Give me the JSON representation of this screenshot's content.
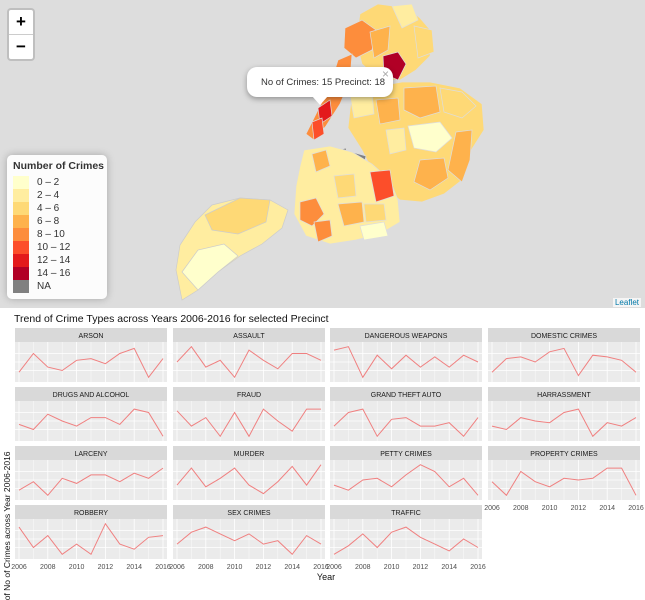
{
  "map": {
    "zoom_in_label": "+",
    "zoom_out_label": "−",
    "popup_text": "No of Crimes: 15 Precinct: 18",
    "popup_close": "×",
    "attribution": "Leaflet",
    "legend": {
      "title": "Number of Crimes",
      "items": [
        {
          "label": "0 – 2",
          "color": "#ffffcc"
        },
        {
          "label": "2 – 4",
          "color": "#ffeda0"
        },
        {
          "label": "4 – 6",
          "color": "#fed976"
        },
        {
          "label": "6 – 8",
          "color": "#feb24c"
        },
        {
          "label": "8 – 10",
          "color": "#fd8d3c"
        },
        {
          "label": "10 – 12",
          "color": "#fc4e2a"
        },
        {
          "label": "12 – 14",
          "color": "#e31a1c"
        },
        {
          "label": "14 – 16",
          "color": "#b10026"
        },
        {
          "label": "NA",
          "color": "#808080"
        }
      ]
    }
  },
  "chart_data": {
    "type": "line",
    "title": "Trend of Crime Types across Years 2006-2016 for selected Precinct",
    "xlabel": "Year",
    "ylabel": "Trend of No of Crimes across Year 2006-2016",
    "x": [
      2006,
      2007,
      2008,
      2009,
      2010,
      2011,
      2012,
      2013,
      2014,
      2015,
      2016
    ],
    "x_ticks": [
      "2006",
      "2008",
      "2010",
      "2012",
      "2014",
      "2016"
    ],
    "line_color": "#f08080",
    "grid": true,
    "series": [
      {
        "name": "ARSON",
        "values": [
          0.2,
          0.75,
          0.35,
          0.25,
          0.55,
          0.6,
          0.45,
          0.75,
          0.9,
          0.05,
          0.6
        ]
      },
      {
        "name": "ASSAULT",
        "values": [
          0.5,
          0.95,
          0.35,
          0.55,
          0.05,
          0.85,
          0.55,
          0.3,
          0.75,
          0.75,
          0.55
        ]
      },
      {
        "name": "DANGEROUS WEAPONS",
        "values": [
          0.85,
          0.95,
          0.05,
          0.7,
          0.3,
          0.7,
          0.35,
          0.65,
          0.35,
          0.7,
          0.5
        ]
      },
      {
        "name": "DOMESTIC CRIMES",
        "values": [
          0.2,
          0.6,
          0.65,
          0.5,
          0.8,
          0.9,
          0.1,
          0.7,
          0.65,
          0.55,
          0.2
        ]
      },
      {
        "name": "DRUGS AND ALCOHOL",
        "values": [
          0.4,
          0.25,
          0.7,
          0.5,
          0.35,
          0.6,
          0.6,
          0.4,
          0.85,
          0.75,
          0.05
        ]
      },
      {
        "name": "FRAUD",
        "values": [
          0.8,
          0.35,
          0.6,
          0.05,
          0.75,
          0.05,
          0.85,
          0.5,
          0.2,
          0.85,
          0.85
        ]
      },
      {
        "name": "GRAND THEFT AUTO",
        "values": [
          0.35,
          0.75,
          0.85,
          0.05,
          0.55,
          0.6,
          0.35,
          0.35,
          0.45,
          0.05,
          0.6
        ]
      },
      {
        "name": "HARRASSMENT",
        "values": [
          0.35,
          0.25,
          0.6,
          0.5,
          0.45,
          0.75,
          0.85,
          0.05,
          0.45,
          0.35,
          0.6
        ]
      },
      {
        "name": "LARCENY",
        "values": [
          0.2,
          0.45,
          0.05,
          0.55,
          0.4,
          0.65,
          0.65,
          0.45,
          0.7,
          0.55,
          0.85
        ]
      },
      {
        "name": "MURDER",
        "values": [
          0.35,
          0.85,
          0.3,
          0.55,
          0.85,
          0.35,
          0.1,
          0.45,
          0.9,
          0.35,
          0.95
        ]
      },
      {
        "name": "PETTY CRIMES",
        "values": [
          0.35,
          0.2,
          0.5,
          0.55,
          0.3,
          0.65,
          0.95,
          0.75,
          0.3,
          0.55,
          0.05
        ]
      },
      {
        "name": "PROPERTY CRIMES",
        "values": [
          0.45,
          0.05,
          0.75,
          0.45,
          0.3,
          0.55,
          0.5,
          0.55,
          0.85,
          0.85,
          0.05
        ]
      },
      {
        "name": "ROBBERY",
        "values": [
          0.85,
          0.25,
          0.6,
          0.05,
          0.35,
          0.05,
          0.95,
          0.35,
          0.2,
          0.55,
          0.6
        ]
      },
      {
        "name": "SEX CRIMES",
        "values": [
          0.35,
          0.7,
          0.85,
          0.65,
          0.45,
          0.65,
          0.35,
          0.45,
          0.05,
          0.6,
          0.35
        ]
      },
      {
        "name": "TRAFFIC",
        "values": [
          0.05,
          0.3,
          0.65,
          0.25,
          0.7,
          0.85,
          0.55,
          0.35,
          0.15,
          0.5,
          0.25
        ]
      }
    ]
  }
}
